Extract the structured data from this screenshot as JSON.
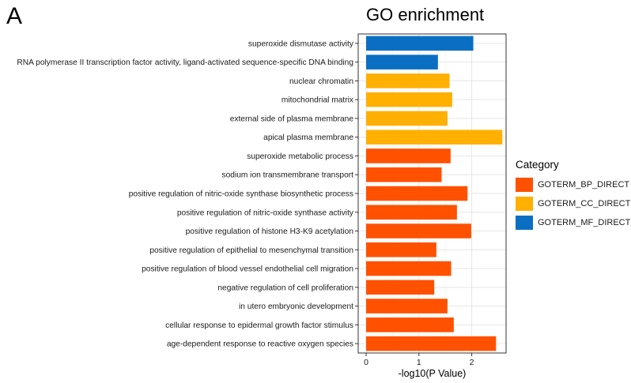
{
  "panel_label": "A",
  "chart_data": {
    "type": "bar",
    "orientation": "horizontal",
    "title": "GO enrichment",
    "xlabel": "-log10(P Value)",
    "ylabel": "",
    "xlim": [
      -0.15,
      2.65
    ],
    "xticks": [
      0,
      1,
      2
    ],
    "grid": true,
    "legend_position": "right",
    "legend": {
      "title": "Category",
      "entries": [
        {
          "name": "GOTERM_BP_DIRECT",
          "color": "#FF5100"
        },
        {
          "name": "GOTERM_CC_DIRECT",
          "color": "#FFB000"
        },
        {
          "name": "GOTERM_MF_DIRECT",
          "color": "#0A6FC2"
        }
      ]
    },
    "bars": [
      {
        "label": "superoxide dismutase activity",
        "value": 2.03,
        "category": "GOTERM_MF_DIRECT"
      },
      {
        "label": "RNA polymerase II transcription factor activity, ligand-activated sequence-specific DNA binding",
        "value": 1.36,
        "category": "GOTERM_MF_DIRECT"
      },
      {
        "label": "nuclear chromatin",
        "value": 1.58,
        "category": "GOTERM_CC_DIRECT"
      },
      {
        "label": "mitochondrial matrix",
        "value": 1.63,
        "category": "GOTERM_CC_DIRECT"
      },
      {
        "label": "external side of plasma membrane",
        "value": 1.54,
        "category": "GOTERM_CC_DIRECT"
      },
      {
        "label": "apical plasma membrane",
        "value": 2.58,
        "category": "GOTERM_CC_DIRECT"
      },
      {
        "label": "superoxide metabolic process",
        "value": 1.6,
        "category": "GOTERM_BP_DIRECT"
      },
      {
        "label": "sodium ion transmembrane transport",
        "value": 1.43,
        "category": "GOTERM_BP_DIRECT"
      },
      {
        "label": "positive regulation of nitric-oxide synthase biosynthetic process",
        "value": 1.92,
        "category": "GOTERM_BP_DIRECT"
      },
      {
        "label": "positive regulation of nitric-oxide synthase activity",
        "value": 1.72,
        "category": "GOTERM_BP_DIRECT"
      },
      {
        "label": "positive regulation of histone H3-K9 acetylation",
        "value": 1.99,
        "category": "GOTERM_BP_DIRECT"
      },
      {
        "label": "positive regulation of epithelial to mesenchymal transition",
        "value": 1.33,
        "category": "GOTERM_BP_DIRECT"
      },
      {
        "label": "positive regulation of blood vessel endothelial cell migration",
        "value": 1.61,
        "category": "GOTERM_BP_DIRECT"
      },
      {
        "label": "negative regulation of cell proliferation",
        "value": 1.29,
        "category": "GOTERM_BP_DIRECT"
      },
      {
        "label": "in utero embryonic development",
        "value": 1.54,
        "category": "GOTERM_BP_DIRECT"
      },
      {
        "label": "cellular response to epidermal growth factor stimulus",
        "value": 1.66,
        "category": "GOTERM_BP_DIRECT"
      },
      {
        "label": "age-dependent response to reactive oxygen species",
        "value": 2.46,
        "category": "GOTERM_BP_DIRECT"
      }
    ]
  }
}
